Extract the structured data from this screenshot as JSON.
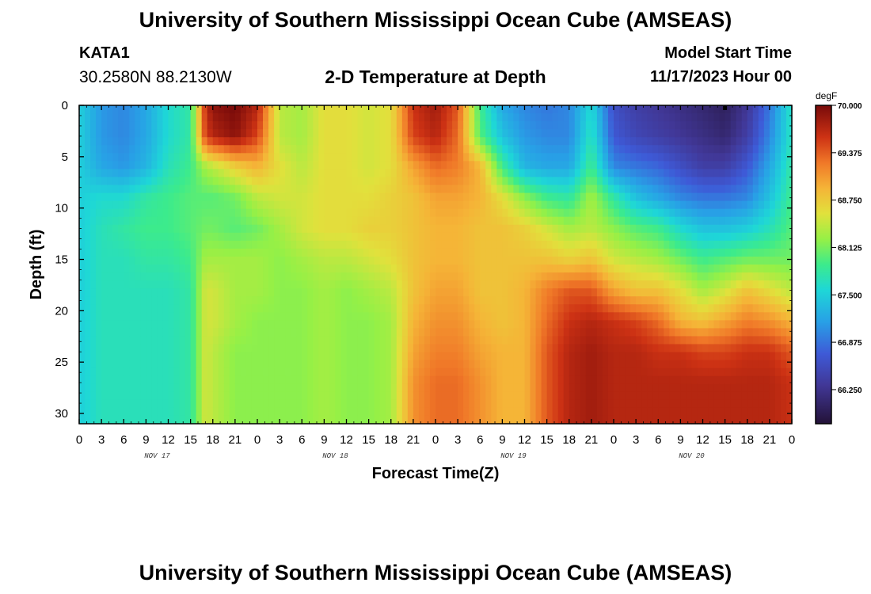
{
  "header": {
    "title": "University of Southern Mississippi Ocean Cube (AMSEAS)",
    "station_id": "KATA1",
    "coords": "30.2580N  88.2130W",
    "subtitle": "2-D Temperature at Depth",
    "model_start_label": "Model Start Time",
    "model_start_value": "11/17/2023 Hour 00"
  },
  "footer": {
    "title": "University of Southern Mississippi Ocean Cube (AMSEAS)"
  },
  "chart_data": {
    "type": "heatmap",
    "title": "2-D Temperature at Depth",
    "xlabel": "Forecast Time(Z)",
    "ylabel": "Depth (ft)",
    "units": "degF",
    "x_tick_labels": [
      "0",
      "3",
      "6",
      "9",
      "12",
      "15",
      "18",
      "21",
      "0",
      "3",
      "6",
      "9",
      "12",
      "15",
      "18",
      "21",
      "0",
      "3",
      "6",
      "9",
      "12",
      "15",
      "18",
      "21",
      "0",
      "3",
      "6",
      "9",
      "12",
      "15",
      "18",
      "21",
      "0"
    ],
    "x_range_hours": [
      0,
      96
    ],
    "date_labels": [
      {
        "label": "NOV 17",
        "hour": 10.5
      },
      {
        "label": "NOV 18",
        "hour": 34.5
      },
      {
        "label": "NOV 19",
        "hour": 58.5
      },
      {
        "label": "NOV 20",
        "hour": 82.5
      }
    ],
    "y_ticks": [
      0,
      5,
      10,
      15,
      20,
      25,
      30
    ],
    "y_tick_labels": [
      "0",
      "5",
      "10",
      "15",
      "20",
      "25",
      "30"
    ],
    "ylim": [
      0,
      31
    ],
    "colorbar": {
      "min": 65.8,
      "max": 70.0,
      "ticks": [
        70.0,
        69.375,
        68.75,
        68.125,
        67.5,
        66.875,
        66.25
      ],
      "tick_labels": [
        "70.000",
        "69.375",
        "68.750",
        "68.125",
        "67.500",
        "66.875",
        "66.250"
      ]
    },
    "depth_levels_ft": [
      0,
      3,
      6,
      9,
      12,
      15,
      18,
      21,
      24,
      27,
      31
    ],
    "time_hours": [
      0,
      3,
      6,
      9,
      12,
      15,
      17,
      18,
      21,
      24,
      27,
      30,
      33,
      36,
      39,
      42,
      45,
      48,
      51,
      54,
      57,
      60,
      63,
      66,
      69,
      72,
      75,
      78,
      81,
      84,
      87,
      90,
      93,
      96
    ],
    "temperature_degF": [
      [
        67.5,
        67.5,
        67.5,
        67.5,
        67.5,
        67.5,
        67.5,
        67.5,
        67.5,
        67.5,
        67.5
      ],
      [
        67.1,
        67.1,
        67.2,
        67.6,
        67.7,
        67.7,
        67.7,
        67.7,
        67.7,
        67.7,
        67.7
      ],
      [
        67.0,
        67.0,
        67.1,
        67.6,
        67.8,
        67.7,
        67.7,
        67.7,
        67.7,
        67.7,
        67.7
      ],
      [
        67.2,
        67.2,
        67.3,
        67.8,
        67.9,
        67.8,
        67.7,
        67.7,
        67.7,
        67.7,
        67.7
      ],
      [
        67.6,
        67.6,
        67.7,
        67.9,
        67.9,
        67.8,
        67.7,
        67.7,
        67.7,
        67.7,
        67.7
      ],
      [
        67.8,
        67.8,
        67.9,
        68.0,
        68.0,
        67.9,
        67.8,
        67.8,
        67.8,
        67.8,
        67.8
      ],
      [
        69.6,
        69.5,
        68.3,
        68.0,
        68.1,
        68.3,
        68.5,
        68.5,
        68.5,
        68.5,
        68.5
      ],
      [
        69.9,
        69.7,
        68.4,
        68.0,
        68.1,
        68.3,
        68.5,
        68.5,
        68.4,
        68.4,
        68.4
      ],
      [
        70.0,
        69.9,
        68.7,
        68.1,
        68.0,
        68.3,
        68.3,
        68.3,
        68.2,
        68.2,
        68.2
      ],
      [
        69.7,
        69.5,
        68.9,
        68.4,
        68.1,
        68.3,
        68.3,
        68.2,
        68.2,
        68.2,
        68.2
      ],
      [
        68.4,
        68.4,
        68.6,
        68.5,
        68.3,
        68.2,
        68.2,
        68.2,
        68.2,
        68.2,
        68.2
      ],
      [
        68.3,
        68.3,
        68.4,
        68.5,
        68.5,
        68.3,
        68.2,
        68.2,
        68.2,
        68.2,
        68.2
      ],
      [
        68.6,
        68.6,
        68.6,
        68.6,
        68.6,
        68.4,
        68.3,
        68.3,
        68.3,
        68.3,
        68.3
      ],
      [
        68.6,
        68.6,
        68.6,
        68.6,
        68.6,
        68.4,
        68.2,
        68.2,
        68.2,
        68.2,
        68.2
      ],
      [
        68.5,
        68.5,
        68.5,
        68.6,
        68.7,
        68.5,
        68.3,
        68.2,
        68.2,
        68.2,
        68.2
      ],
      [
        68.6,
        68.6,
        68.6,
        68.7,
        68.7,
        68.6,
        68.4,
        68.3,
        68.3,
        68.3,
        68.3
      ],
      [
        69.6,
        69.5,
        69.0,
        68.8,
        68.8,
        68.8,
        68.8,
        68.9,
        69.0,
        69.1,
        69.1
      ],
      [
        69.8,
        69.7,
        69.3,
        69.0,
        68.9,
        68.9,
        69.0,
        69.1,
        69.2,
        69.3,
        69.3
      ],
      [
        69.4,
        69.3,
        69.2,
        69.0,
        68.9,
        68.9,
        69.0,
        69.1,
        69.2,
        69.3,
        69.3
      ],
      [
        67.9,
        68.0,
        68.9,
        68.9,
        68.8,
        68.8,
        68.8,
        68.9,
        69.0,
        69.1,
        69.1
      ],
      [
        67.2,
        67.4,
        67.9,
        68.6,
        68.8,
        68.8,
        68.8,
        68.8,
        68.9,
        68.9,
        68.9
      ],
      [
        67.0,
        67.1,
        67.3,
        68.2,
        68.7,
        68.8,
        68.9,
        68.9,
        68.9,
        68.9,
        68.9
      ],
      [
        66.9,
        67.0,
        67.2,
        67.9,
        68.5,
        68.8,
        69.2,
        69.3,
        69.4,
        69.4,
        69.4
      ],
      [
        67.0,
        67.0,
        67.2,
        67.8,
        68.3,
        68.7,
        69.4,
        69.6,
        69.7,
        69.7,
        69.7
      ],
      [
        67.6,
        67.7,
        67.9,
        68.3,
        68.4,
        68.8,
        69.4,
        69.7,
        69.8,
        69.8,
        69.8
      ],
      [
        66.6,
        66.7,
        67.0,
        67.8,
        68.2,
        68.5,
        69.0,
        69.6,
        69.7,
        69.7,
        69.7
      ],
      [
        66.4,
        66.5,
        66.9,
        67.4,
        68.0,
        68.4,
        68.8,
        69.5,
        69.7,
        69.7,
        69.7
      ],
      [
        66.3,
        66.4,
        66.8,
        67.2,
        67.9,
        68.3,
        68.8,
        69.3,
        69.6,
        69.7,
        69.7
      ],
      [
        66.2,
        66.3,
        66.6,
        67.0,
        67.6,
        68.1,
        68.6,
        68.9,
        69.6,
        69.7,
        69.7
      ],
      [
        66.1,
        66.2,
        66.4,
        66.9,
        67.4,
        67.9,
        68.3,
        68.8,
        69.5,
        69.7,
        69.7
      ],
      [
        66.0,
        66.1,
        66.4,
        66.9,
        67.4,
        68.0,
        68.5,
        69.0,
        69.5,
        69.7,
        69.7
      ],
      [
        66.3,
        66.4,
        66.7,
        67.0,
        67.5,
        68.1,
        68.8,
        69.2,
        69.6,
        69.7,
        69.7
      ],
      [
        66.9,
        67.0,
        67.2,
        67.4,
        67.7,
        68.1,
        68.6,
        69.1,
        69.6,
        69.7,
        69.7
      ],
      [
        67.7,
        67.7,
        67.8,
        67.9,
        68.0,
        68.1,
        68.4,
        68.9,
        69.4,
        69.6,
        69.6
      ]
    ]
  }
}
